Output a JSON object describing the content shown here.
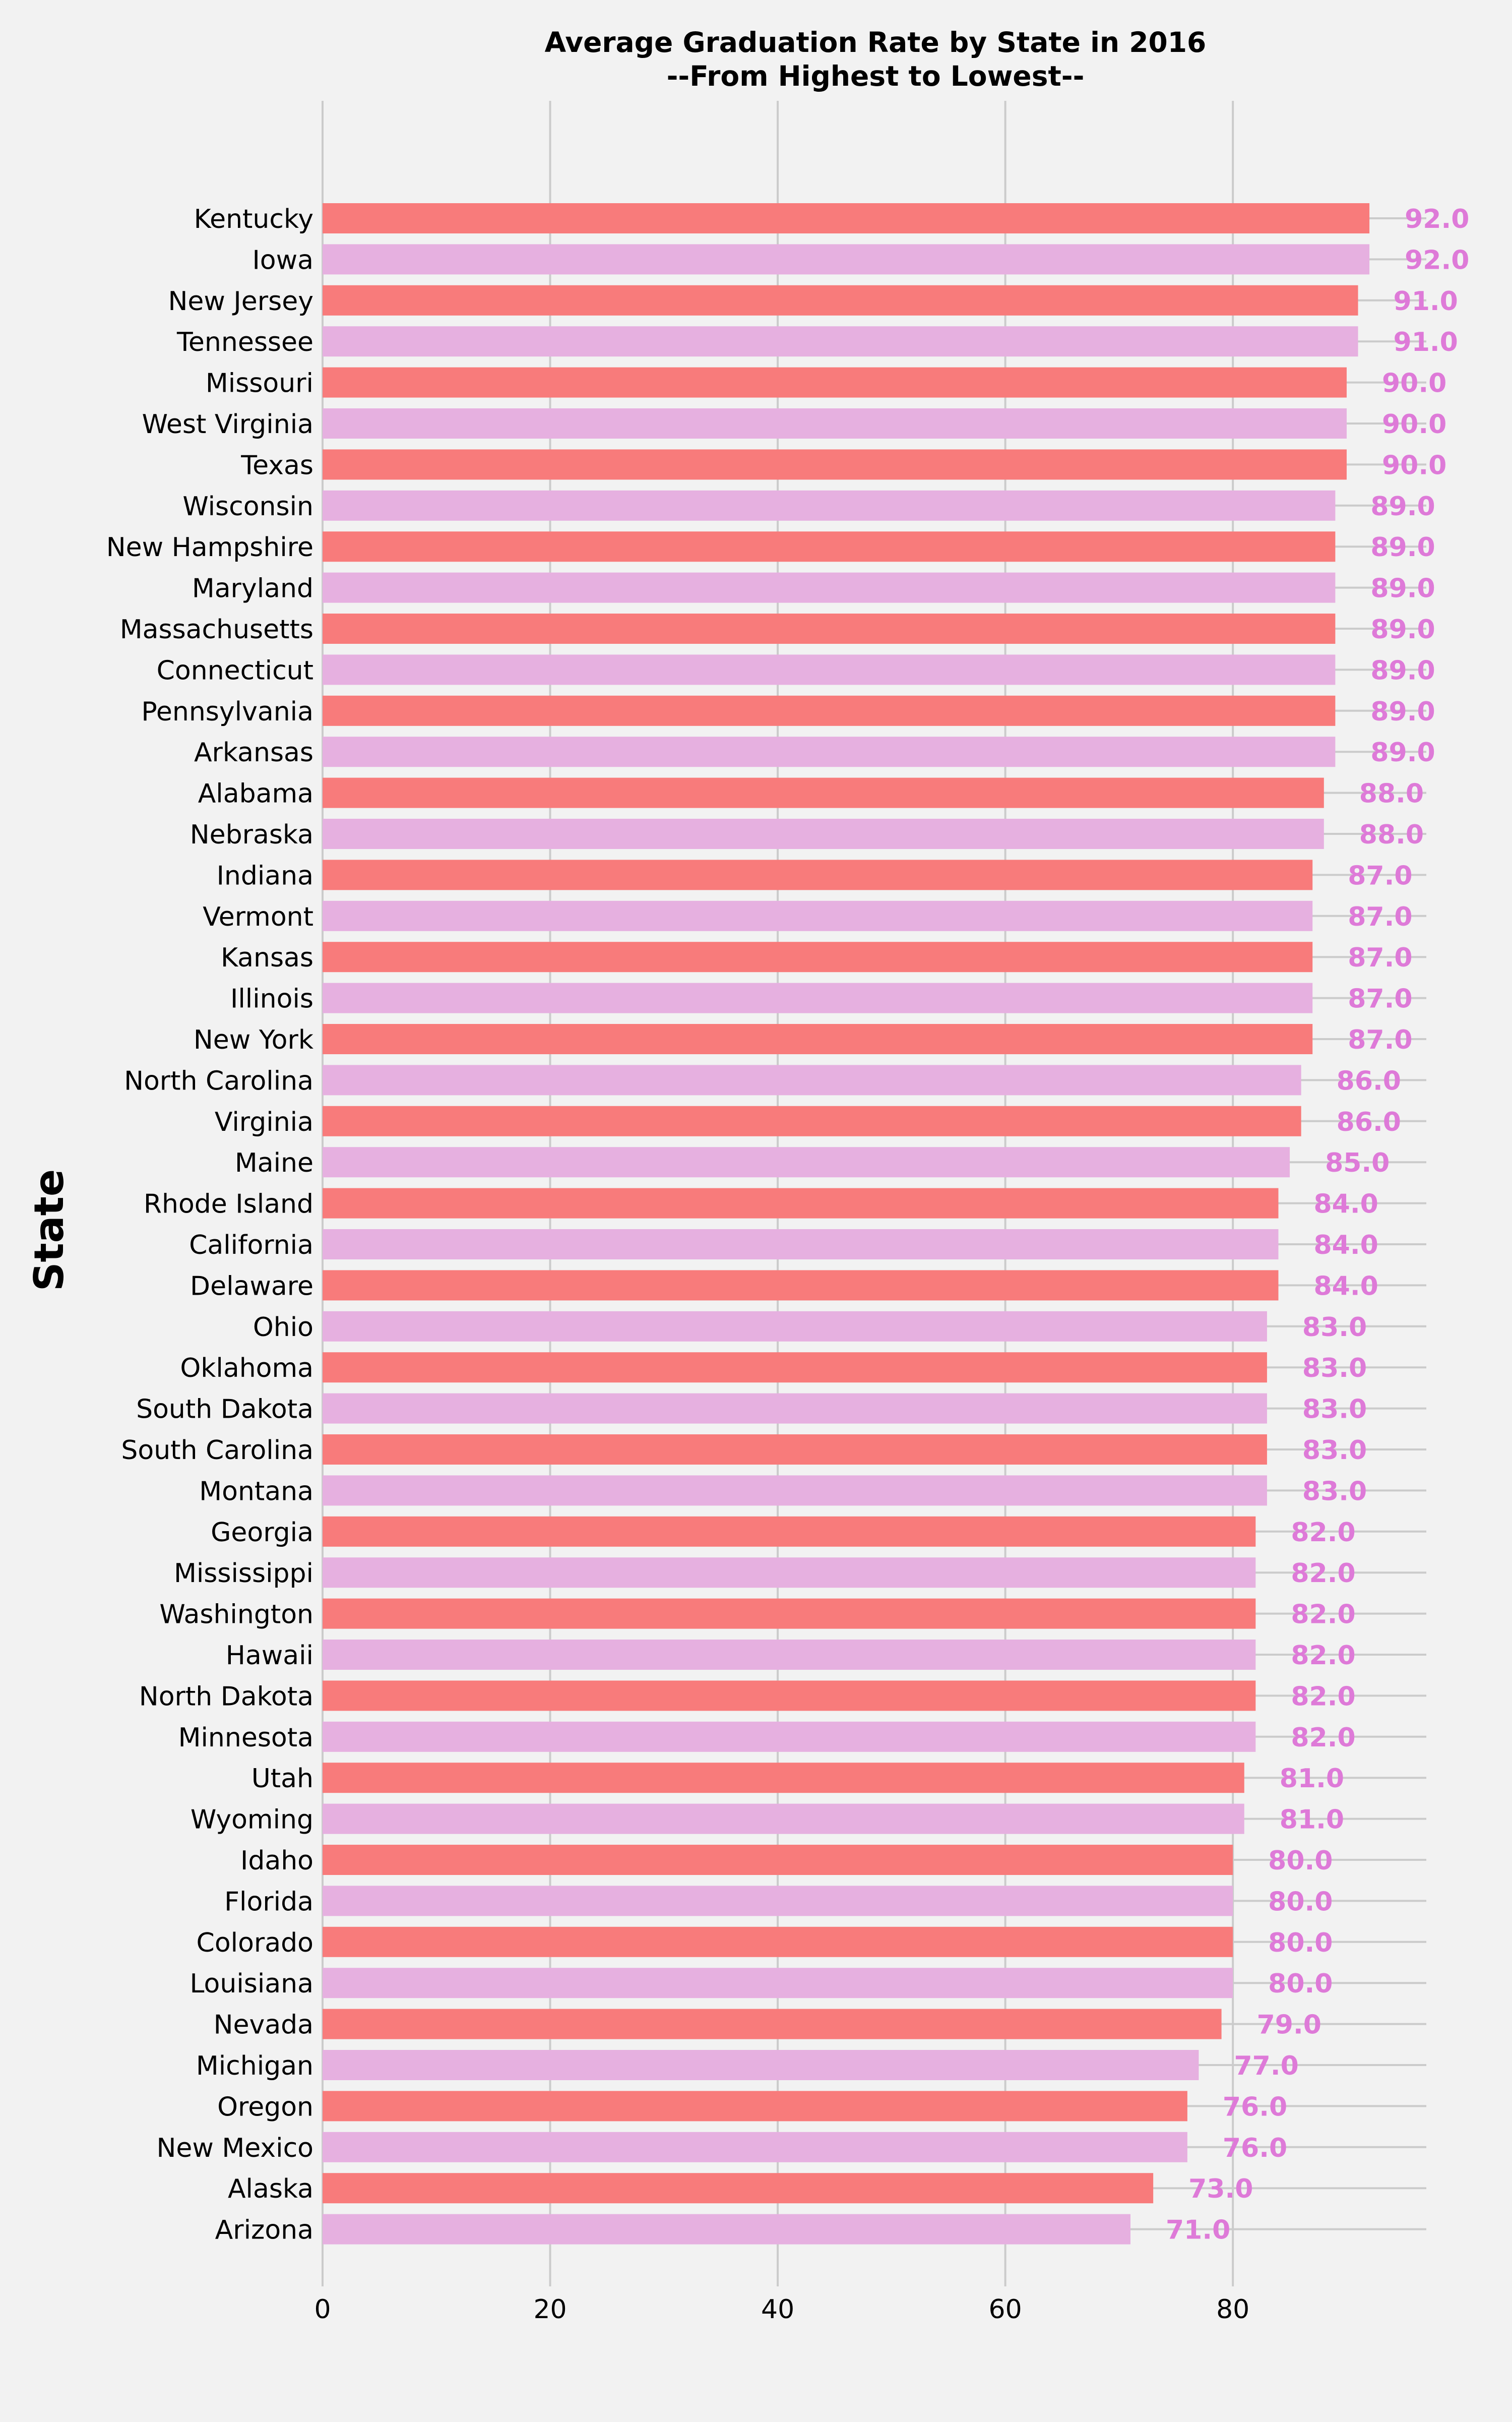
{
  "chart_data": {
    "type": "bar",
    "orientation": "horizontal",
    "title": "Average Graduation Rate by State in 2016",
    "subtitle": "--From Highest to Lowest--",
    "ylabel": "State",
    "xlabel": "",
    "xlim": [
      0,
      97
    ],
    "xticks": [
      0,
      20,
      40,
      60,
      80
    ],
    "grid": true,
    "colors": {
      "odd": "#f87b7b",
      "even": "#e6b0e0",
      "label": "#de7ad8",
      "background": "#f2f2f2",
      "grid": "#cbcbcb"
    },
    "categories": [
      "Kentucky",
      "Iowa",
      "New Jersey",
      "Tennessee",
      "Missouri",
      "West Virginia",
      "Texas",
      "Wisconsin",
      "New Hampshire",
      "Maryland",
      "Massachusetts",
      "Connecticut",
      "Pennsylvania",
      "Arkansas",
      "Alabama",
      "Nebraska",
      "Indiana",
      "Vermont",
      "Kansas",
      "Illinois",
      "New York",
      "North Carolina",
      "Virginia",
      "Maine",
      "Rhode Island",
      "California",
      "Delaware",
      "Ohio",
      "Oklahoma",
      "South Dakota",
      "South Carolina",
      "Montana",
      "Georgia",
      "Mississippi",
      "Washington",
      "Hawaii",
      "North Dakota",
      "Minnesota",
      "Utah",
      "Wyoming",
      "Idaho",
      "Florida",
      "Colorado",
      "Louisiana",
      "Nevada",
      "Michigan",
      "Oregon",
      "New Mexico",
      "Alaska",
      "Arizona"
    ],
    "values": [
      92,
      92,
      91,
      91,
      90,
      90,
      90,
      89,
      89,
      89,
      89,
      89,
      89,
      89,
      88,
      88,
      87,
      87,
      87,
      87,
      87,
      86,
      86,
      85,
      84,
      84,
      84,
      83,
      83,
      83,
      83,
      83,
      82,
      82,
      82,
      82,
      82,
      82,
      81,
      81,
      80,
      80,
      80,
      80,
      79,
      77,
      76,
      76,
      73,
      71
    ],
    "data_labels": [
      "92.0",
      "92.0",
      "91.0",
      "91.0",
      "90.0",
      "90.0",
      "90.0",
      "89.0",
      "89.0",
      "89.0",
      "89.0",
      "89.0",
      "89.0",
      "89.0",
      "88.0",
      "88.0",
      "87.0",
      "87.0",
      "87.0",
      "87.0",
      "87.0",
      "86.0",
      "86.0",
      "85.0",
      "84.0",
      "84.0",
      "84.0",
      "83.0",
      "83.0",
      "83.0",
      "83.0",
      "83.0",
      "82.0",
      "82.0",
      "82.0",
      "82.0",
      "82.0",
      "82.0",
      "81.0",
      "81.0",
      "80.0",
      "80.0",
      "80.0",
      "80.0",
      "79.0",
      "77.0",
      "76.0",
      "76.0",
      "73.0",
      "71.0"
    ]
  }
}
